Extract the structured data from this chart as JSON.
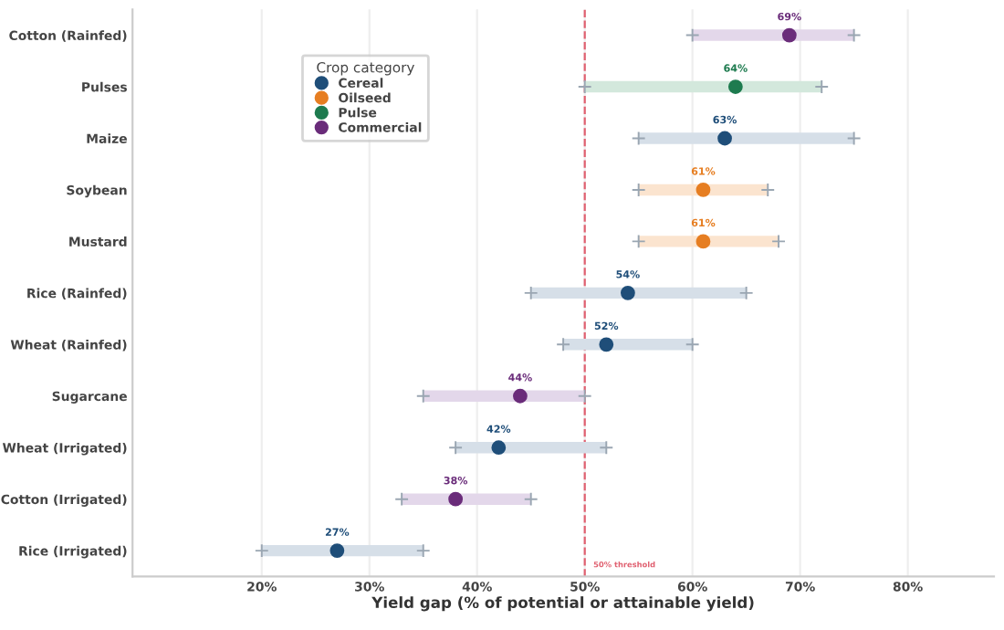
{
  "chart_data": {
    "type": "bar",
    "orientation": "horizontal",
    "xlabel": "Yield gap (% of potential or attainable yield)",
    "legend_title": "Crop category",
    "legend": "top left",
    "grid": "x",
    "categories": [
      "Cotton (Rainfed)",
      "Pulses",
      "Maize",
      "Soybean",
      "Mustard",
      "Rice (Rainfed)",
      "Wheat (Rainfed)",
      "Sugarcane",
      "Wheat (Irrigated)",
      "Cotton (Irrigated)",
      "Rice (Irrigated)"
    ],
    "xlim": [
      8,
      88
    ],
    "xticks": [
      {
        "value": 20,
        "label": "20%"
      },
      {
        "value": 30,
        "label": "30%"
      },
      {
        "value": 40,
        "label": "40%"
      },
      {
        "value": 50,
        "label": "50%"
      },
      {
        "value": 60,
        "label": "60%"
      },
      {
        "value": 70,
        "label": "70%"
      },
      {
        "value": 80,
        "label": "80%"
      }
    ],
    "ref_lines": [
      {
        "axis": "x",
        "value": 50,
        "label": "50% threshold",
        "color": "#e06070",
        "line_style": "dashed"
      }
    ],
    "series": [
      {
        "base": [
          60,
          50,
          55,
          55,
          55,
          45,
          48,
          35,
          38,
          33,
          20
        ],
        "values": [
          15,
          22,
          20,
          12,
          13,
          20,
          12,
          15,
          14,
          12,
          15
        ],
        "colors": [
          "#e3d7ea",
          "#d3e8dc",
          "#d6dfe8",
          "#fbe4cf",
          "#fbe4cf",
          "#d6dfe8",
          "#d6dfe8",
          "#e3d7ea",
          "#d6dfe8",
          "#e3d7ea",
          "#d6dfe8"
        ]
      },
      {
        "type": "scatter",
        "name": "Cereal",
        "color": "#1f4e79",
        "values": [
          null,
          null,
          63,
          null,
          null,
          54,
          52,
          null,
          42,
          null,
          27
        ],
        "value_labels": [
          null,
          null,
          "63%",
          null,
          null,
          "54%",
          "52%",
          null,
          "42%",
          null,
          "27%"
        ]
      },
      {
        "type": "scatter",
        "name": "Oilseed",
        "color": "#e67e22",
        "values": [
          null,
          null,
          null,
          61,
          61,
          null,
          null,
          null,
          null,
          null,
          null
        ],
        "value_labels": [
          null,
          null,
          null,
          "61%",
          "61%",
          null,
          null,
          null,
          null,
          null,
          null
        ]
      },
      {
        "type": "scatter",
        "name": "Pulse",
        "color": "#1e7b4f",
        "values": [
          null,
          64,
          null,
          null,
          null,
          null,
          null,
          null,
          null,
          null,
          null
        ],
        "value_labels": [
          null,
          "64%",
          null,
          null,
          null,
          null,
          null,
          null,
          null,
          null,
          null
        ]
      },
      {
        "type": "scatter",
        "name": "Commercial",
        "color": "#6a2c7a",
        "values": [
          69,
          null,
          null,
          null,
          null,
          null,
          null,
          44,
          null,
          38,
          null
        ],
        "value_labels": [
          "69%",
          null,
          null,
          null,
          null,
          null,
          null,
          "44%",
          null,
          "38%",
          null
        ]
      }
    ]
  }
}
